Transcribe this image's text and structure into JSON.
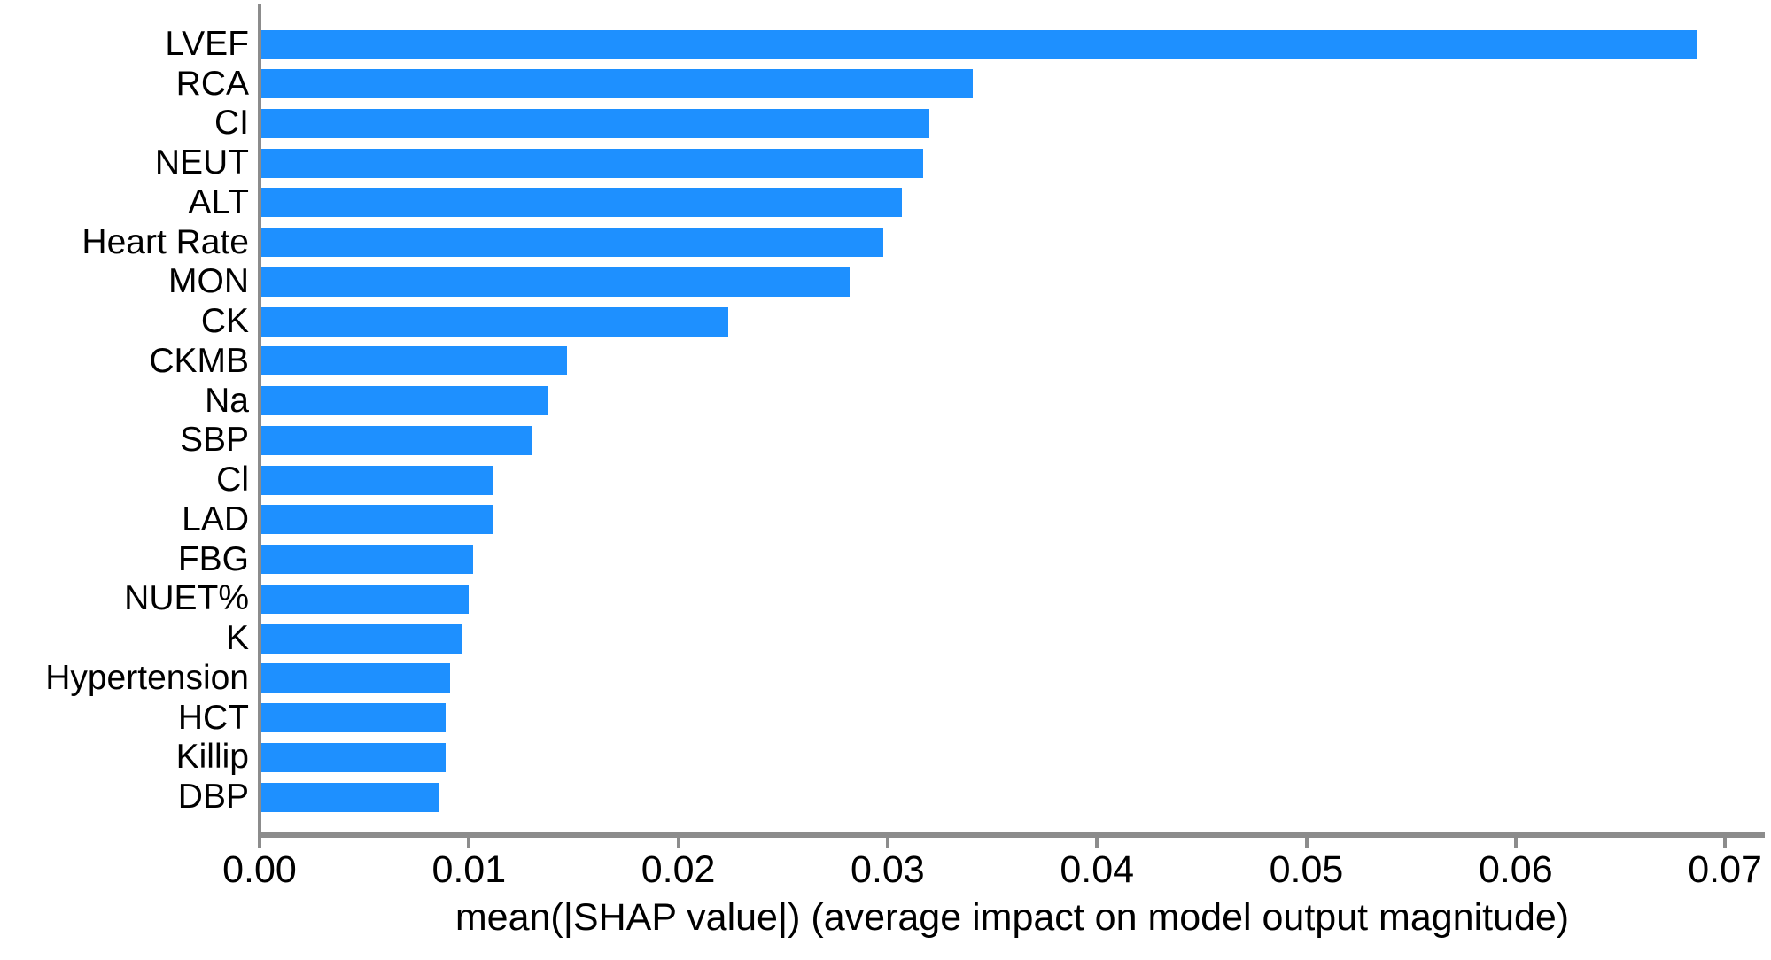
{
  "chart_data": {
    "type": "bar",
    "orientation": "horizontal",
    "title": "",
    "xlabel": "mean(|SHAP value|) (average impact on model output magnitude)",
    "ylabel": "",
    "categories": [
      "LVEF",
      "RCA",
      "CI",
      "NEUT",
      "ALT",
      "Heart Rate",
      "MON",
      "CK",
      "CKMB",
      "Na",
      "SBP",
      "Cl",
      "LAD",
      "FBG",
      "NUET%",
      "K",
      "Hypertension",
      "HCT",
      "Killip",
      "DBP"
    ],
    "values": [
      0.0686,
      0.034,
      0.0319,
      0.0316,
      0.0306,
      0.0297,
      0.0281,
      0.0223,
      0.0146,
      0.0137,
      0.0129,
      0.0111,
      0.0111,
      0.0101,
      0.0099,
      0.0096,
      0.009,
      0.0088,
      0.0088,
      0.0085
    ],
    "xlim": [
      0.0,
      0.0719
    ],
    "xtick_values": [
      0.0,
      0.01,
      0.02,
      0.03,
      0.04,
      0.05,
      0.06,
      0.07
    ],
    "xtick_labels": [
      "0.00",
      "0.01",
      "0.02",
      "0.03",
      "0.04",
      "0.05",
      "0.06",
      "0.07"
    ],
    "grid": false,
    "legend": null,
    "bar_color": "#1E90FF",
    "axis_color": "#8c8c8c",
    "text_color": "#000000"
  }
}
